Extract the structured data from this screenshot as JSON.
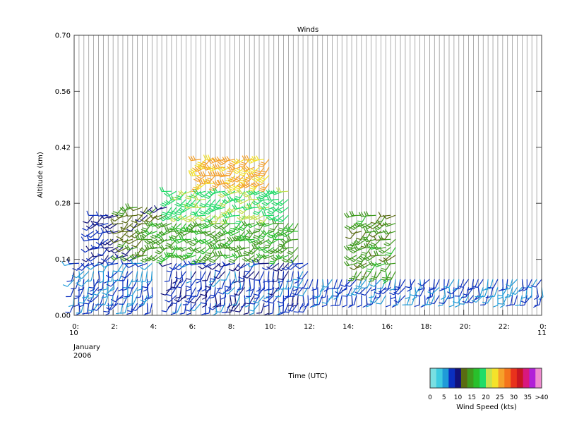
{
  "chart_data": {
    "type": "wind-barb time-height plot",
    "title": "Winds",
    "xlabel": "Time (UTC)",
    "ylabel": "Altitude (km)",
    "xlim": [
      0,
      24
    ],
    "ylim": [
      0.0,
      0.7
    ],
    "x_ticks": [
      {
        "v": 0,
        "label": "0:"
      },
      {
        "v": 2,
        "label": "2:"
      },
      {
        "v": 4,
        "label": "4:"
      },
      {
        "v": 6,
        "label": "6:"
      },
      {
        "v": 8,
        "label": "8:"
      },
      {
        "v": 10,
        "label": "10:"
      },
      {
        "v": 12,
        "label": "12:"
      },
      {
        "v": 14,
        "label": "14:"
      },
      {
        "v": 16,
        "label": "16:"
      },
      {
        "v": 18,
        "label": "18:"
      },
      {
        "v": 20,
        "label": "20:"
      },
      {
        "v": 22,
        "label": "22:"
      },
      {
        "v": 24,
        "label": "0:"
      }
    ],
    "x_date_start": [
      "10",
      "January",
      "2006"
    ],
    "x_date_end": [
      "11"
    ],
    "y_ticks": [
      "0.00",
      "0.14",
      "0.28",
      "0.42",
      "0.56",
      "0.70"
    ],
    "y_tick_values": [
      0.0,
      0.14,
      0.28,
      0.42,
      0.56,
      0.7
    ],
    "profile_times": [
      0.0,
      0.25,
      0.5,
      0.75,
      1.0,
      1.25,
      1.5,
      1.75,
      2.0,
      2.25,
      2.5,
      2.75,
      3.0,
      3.25,
      3.5,
      3.75,
      4.0,
      4.25,
      4.5,
      4.75,
      5.0,
      5.25,
      5.5,
      5.75,
      6.0,
      6.25,
      6.5,
      6.75,
      7.0,
      7.25,
      7.5,
      7.75,
      8.0,
      8.25,
      8.5,
      8.75,
      9.0,
      9.25,
      9.5,
      9.75,
      10.0,
      10.25,
      10.5,
      10.75,
      11.0,
      11.25,
      11.5,
      11.75,
      12.0,
      12.25,
      12.5,
      12.75,
      13.0,
      13.25,
      13.5,
      13.75,
      14.0,
      14.25,
      14.5,
      14.75,
      15.0,
      15.25,
      15.5,
      15.75,
      16.0,
      16.25,
      16.5,
      16.75,
      17.0,
      17.25,
      17.5,
      17.75,
      18.0,
      18.25,
      18.5,
      18.75,
      19.0,
      19.25,
      19.5,
      19.75,
      20.0,
      20.25,
      20.5,
      20.75,
      21.0,
      21.25,
      21.5,
      21.75,
      22.0,
      22.25,
      22.5,
      22.75,
      23.0,
      23.25,
      23.5,
      23.75,
      24.0
    ],
    "barb_altitudes": [
      0.03,
      0.05,
      0.07,
      0.09,
      0.11,
      0.13,
      0.15,
      0.17,
      0.19,
      0.21,
      0.23,
      0.25,
      0.27,
      0.29,
      0.31,
      0.33,
      0.35,
      0.37,
      0.39
    ],
    "wind_speed_kts": {
      "description": "approximate speed regions read from barb colors",
      "regions": [
        {
          "t_range": [
            0,
            4
          ],
          "alt_range": [
            0.03,
            0.14
          ],
          "speed": 8
        },
        {
          "t_range": [
            1,
            4.5
          ],
          "alt_range": [
            0.14,
            0.25
          ],
          "speed": 10
        },
        {
          "t_range": [
            2.5,
            6
          ],
          "alt_range": [
            0.14,
            0.28
          ],
          "speed": 14
        },
        {
          "t_range": [
            4,
            11.5
          ],
          "alt_range": [
            0.14,
            0.24
          ],
          "speed": 17
        },
        {
          "t_range": [
            5,
            11
          ],
          "alt_range": [
            0.24,
            0.32
          ],
          "speed": 22
        },
        {
          "t_range": [
            6.5,
            10
          ],
          "alt_range": [
            0.32,
            0.4
          ],
          "speed": 28
        },
        {
          "t_range": [
            5,
            12
          ],
          "alt_range": [
            0.03,
            0.13
          ],
          "speed": 9
        },
        {
          "t_range": [
            12,
            24
          ],
          "alt_range": [
            0.04,
            0.1
          ],
          "speed": 8
        },
        {
          "t_range": [
            14.5,
            16.5
          ],
          "alt_range": [
            0.1,
            0.26
          ],
          "speed": 16
        }
      ]
    },
    "colorbar": {
      "label": "Wind Speed (kts)",
      "tick_labels": [
        "0",
        "5",
        "10",
        "15",
        "20",
        "25",
        "30",
        "35",
        ">40"
      ],
      "colors": [
        "#79dfe2",
        "#3ecbe0",
        "#1f9bd8",
        "#0a2fc0",
        "#11117a",
        "#5a6b12",
        "#3f9b1e",
        "#29c02c",
        "#1fdc68",
        "#c6e24e",
        "#f4e22a",
        "#f6a12a",
        "#f4741b",
        "#e8321c",
        "#c81622",
        "#d8187e",
        "#b120d8",
        "#f08ad0"
      ]
    }
  }
}
